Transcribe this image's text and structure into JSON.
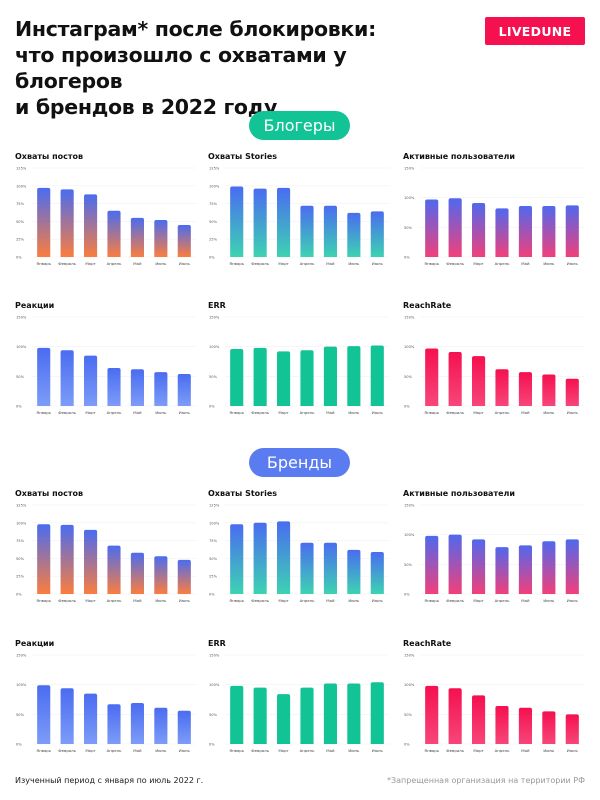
{
  "header": {
    "title_lines": [
      "Инстаграм* после блокировки:",
      "что произошло с охватами у блогеров",
      "и брендов в 2022 году"
    ],
    "brand_logo": "LIVEDUNE"
  },
  "colors": {
    "brand": "#f5104f",
    "bloggers_pill": "#12c396",
    "brands_pill": "#5b7cf0"
  },
  "sections": [
    {
      "label": "Блогеры"
    },
    {
      "label": "Бренды"
    }
  ],
  "footer": {
    "period": "Изученный период с января по июль 2022 г.",
    "note": "*Запрещенная организация на территории РФ"
  },
  "chart_data": [
    {
      "section": "Блогеры",
      "type": "bar",
      "title": "Охваты постов",
      "categories": [
        "Январь",
        "Февраль",
        "Март",
        "Апрель",
        "Май",
        "Июнь",
        "Июль"
      ],
      "values": [
        97,
        95,
        88,
        65,
        55,
        52,
        45
      ],
      "ylim": [
        0,
        125
      ],
      "yticks": [
        0,
        25,
        50,
        75,
        100,
        125
      ],
      "tick_suffix": "%",
      "grid": true,
      "colors": [
        "#4a6cf0",
        "#fb7d3f"
      ]
    },
    {
      "section": "Блогеры",
      "type": "bar",
      "title": "Охваты Stories",
      "categories": [
        "Январь",
        "Февраль",
        "Март",
        "Апрель",
        "Май",
        "Июнь",
        "Июль"
      ],
      "values": [
        99,
        96,
        97,
        72,
        72,
        62,
        64
      ],
      "ylim": [
        0,
        125
      ],
      "yticks": [
        0,
        25,
        50,
        75,
        100,
        125
      ],
      "tick_suffix": "%",
      "grid": true,
      "colors": [
        "#4a6cf0",
        "#3dd3b2"
      ]
    },
    {
      "section": "Блогеры",
      "type": "bar",
      "title": "Активные пользователи",
      "categories": [
        "Январь",
        "Февраль",
        "Март",
        "Апрель",
        "Май",
        "Июнь",
        "Июль"
      ],
      "values": [
        97,
        99,
        91,
        82,
        86,
        86,
        87
      ],
      "ylim": [
        0,
        150
      ],
      "yticks": [
        0,
        50,
        100,
        150
      ],
      "tick_suffix": "%",
      "grid": true,
      "colors": [
        "#5068ee",
        "#f2407a"
      ]
    },
    {
      "section": "Блогеры",
      "type": "bar",
      "title": "Реакции",
      "categories": [
        "Январь",
        "Февраль",
        "Март",
        "Апрель",
        "Май",
        "Июнь",
        "Июль"
      ],
      "values": [
        98,
        94,
        85,
        64,
        62,
        57,
        54
      ],
      "ylim": [
        0,
        150
      ],
      "yticks": [
        0,
        50,
        100,
        150
      ],
      "tick_suffix": "%",
      "grid": true,
      "colors": [
        "#4a6cf0",
        "#7d9cf8"
      ]
    },
    {
      "section": "Блогеры",
      "type": "bar",
      "title": "ERR",
      "categories": [
        "Январь",
        "Февраль",
        "Март",
        "Апрель",
        "Май",
        "Июнь",
        "Июль"
      ],
      "values": [
        96,
        98,
        92,
        94,
        100,
        101,
        102
      ],
      "ylim": [
        0,
        150
      ],
      "yticks": [
        0,
        50,
        100,
        150
      ],
      "tick_suffix": "%",
      "grid": true,
      "colors": [
        "#12c396",
        "#12c396"
      ]
    },
    {
      "section": "Блогеры",
      "type": "bar",
      "title": "ReachRate",
      "categories": [
        "Январь",
        "Февраль",
        "Март",
        "Апрель",
        "Май",
        "Июнь",
        "Июль"
      ],
      "values": [
        97,
        91,
        84,
        62,
        57,
        53,
        46
      ],
      "ylim": [
        0,
        150
      ],
      "yticks": [
        0,
        50,
        100,
        150
      ],
      "tick_suffix": "%",
      "grid": true,
      "colors": [
        "#f5104f",
        "#f7467a"
      ]
    },
    {
      "section": "Бренды",
      "type": "bar",
      "title": "Охваты постов",
      "categories": [
        "Январь",
        "Февраль",
        "Март",
        "Апрель",
        "Май",
        "Июнь",
        "Июль"
      ],
      "values": [
        98,
        97,
        90,
        68,
        58,
        53,
        48
      ],
      "ylim": [
        0,
        125
      ],
      "yticks": [
        0,
        25,
        50,
        75,
        100,
        125
      ],
      "tick_suffix": "%",
      "grid": true,
      "colors": [
        "#4a6cf0",
        "#fb7d3f"
      ]
    },
    {
      "section": "Бренды",
      "type": "bar",
      "title": "Охваты Stories",
      "categories": [
        "Январь",
        "Февраль",
        "Март",
        "Апрель",
        "Май",
        "Июнь",
        "Июль"
      ],
      "values": [
        98,
        100,
        102,
        72,
        72,
        62,
        59
      ],
      "ylim": [
        0,
        125
      ],
      "yticks": [
        0,
        25,
        50,
        75,
        100,
        125
      ],
      "tick_suffix": "%",
      "grid": true,
      "colors": [
        "#4a6cf0",
        "#3dd3b2"
      ]
    },
    {
      "section": "Бренды",
      "type": "bar",
      "title": "Активные пользователи",
      "categories": [
        "Январь",
        "Февраль",
        "Март",
        "Апрель",
        "Май",
        "Июнь",
        "Июль"
      ],
      "values": [
        98,
        100,
        92,
        79,
        82,
        89,
        92
      ],
      "ylim": [
        0,
        150
      ],
      "yticks": [
        0,
        50,
        100,
        150
      ],
      "tick_suffix": "%",
      "grid": true,
      "colors": [
        "#5068ee",
        "#f2407a"
      ]
    },
    {
      "section": "Бренды",
      "type": "bar",
      "title": "Реакции",
      "categories": [
        "Январь",
        "Февраль",
        "Март",
        "Апрель",
        "Май",
        "Июнь",
        "Июль"
      ],
      "values": [
        99,
        94,
        85,
        67,
        69,
        61,
        56
      ],
      "ylim": [
        0,
        150
      ],
      "yticks": [
        0,
        50,
        100,
        150
      ],
      "tick_suffix": "%",
      "grid": true,
      "colors": [
        "#4a6cf0",
        "#7d9cf8"
      ]
    },
    {
      "section": "Бренды",
      "type": "bar",
      "title": "ERR",
      "categories": [
        "Январь",
        "Февраль",
        "Март",
        "Апрель",
        "Май",
        "Июнь",
        "Июль"
      ],
      "values": [
        98,
        95,
        84,
        95,
        102,
        102,
        104
      ],
      "ylim": [
        0,
        150
      ],
      "yticks": [
        0,
        50,
        100,
        150
      ],
      "tick_suffix": "%",
      "grid": true,
      "colors": [
        "#12c396",
        "#12c396"
      ]
    },
    {
      "section": "Бренды",
      "type": "bar",
      "title": "ReachRate",
      "categories": [
        "Январь",
        "Февраль",
        "Март",
        "Апрель",
        "Май",
        "Июнь",
        "Июль"
      ],
      "values": [
        98,
        94,
        82,
        64,
        61,
        55,
        50
      ],
      "ylim": [
        0,
        150
      ],
      "yticks": [
        0,
        50,
        100,
        150
      ],
      "tick_suffix": "%",
      "grid": true,
      "colors": [
        "#f5104f",
        "#f7467a"
      ]
    }
  ]
}
